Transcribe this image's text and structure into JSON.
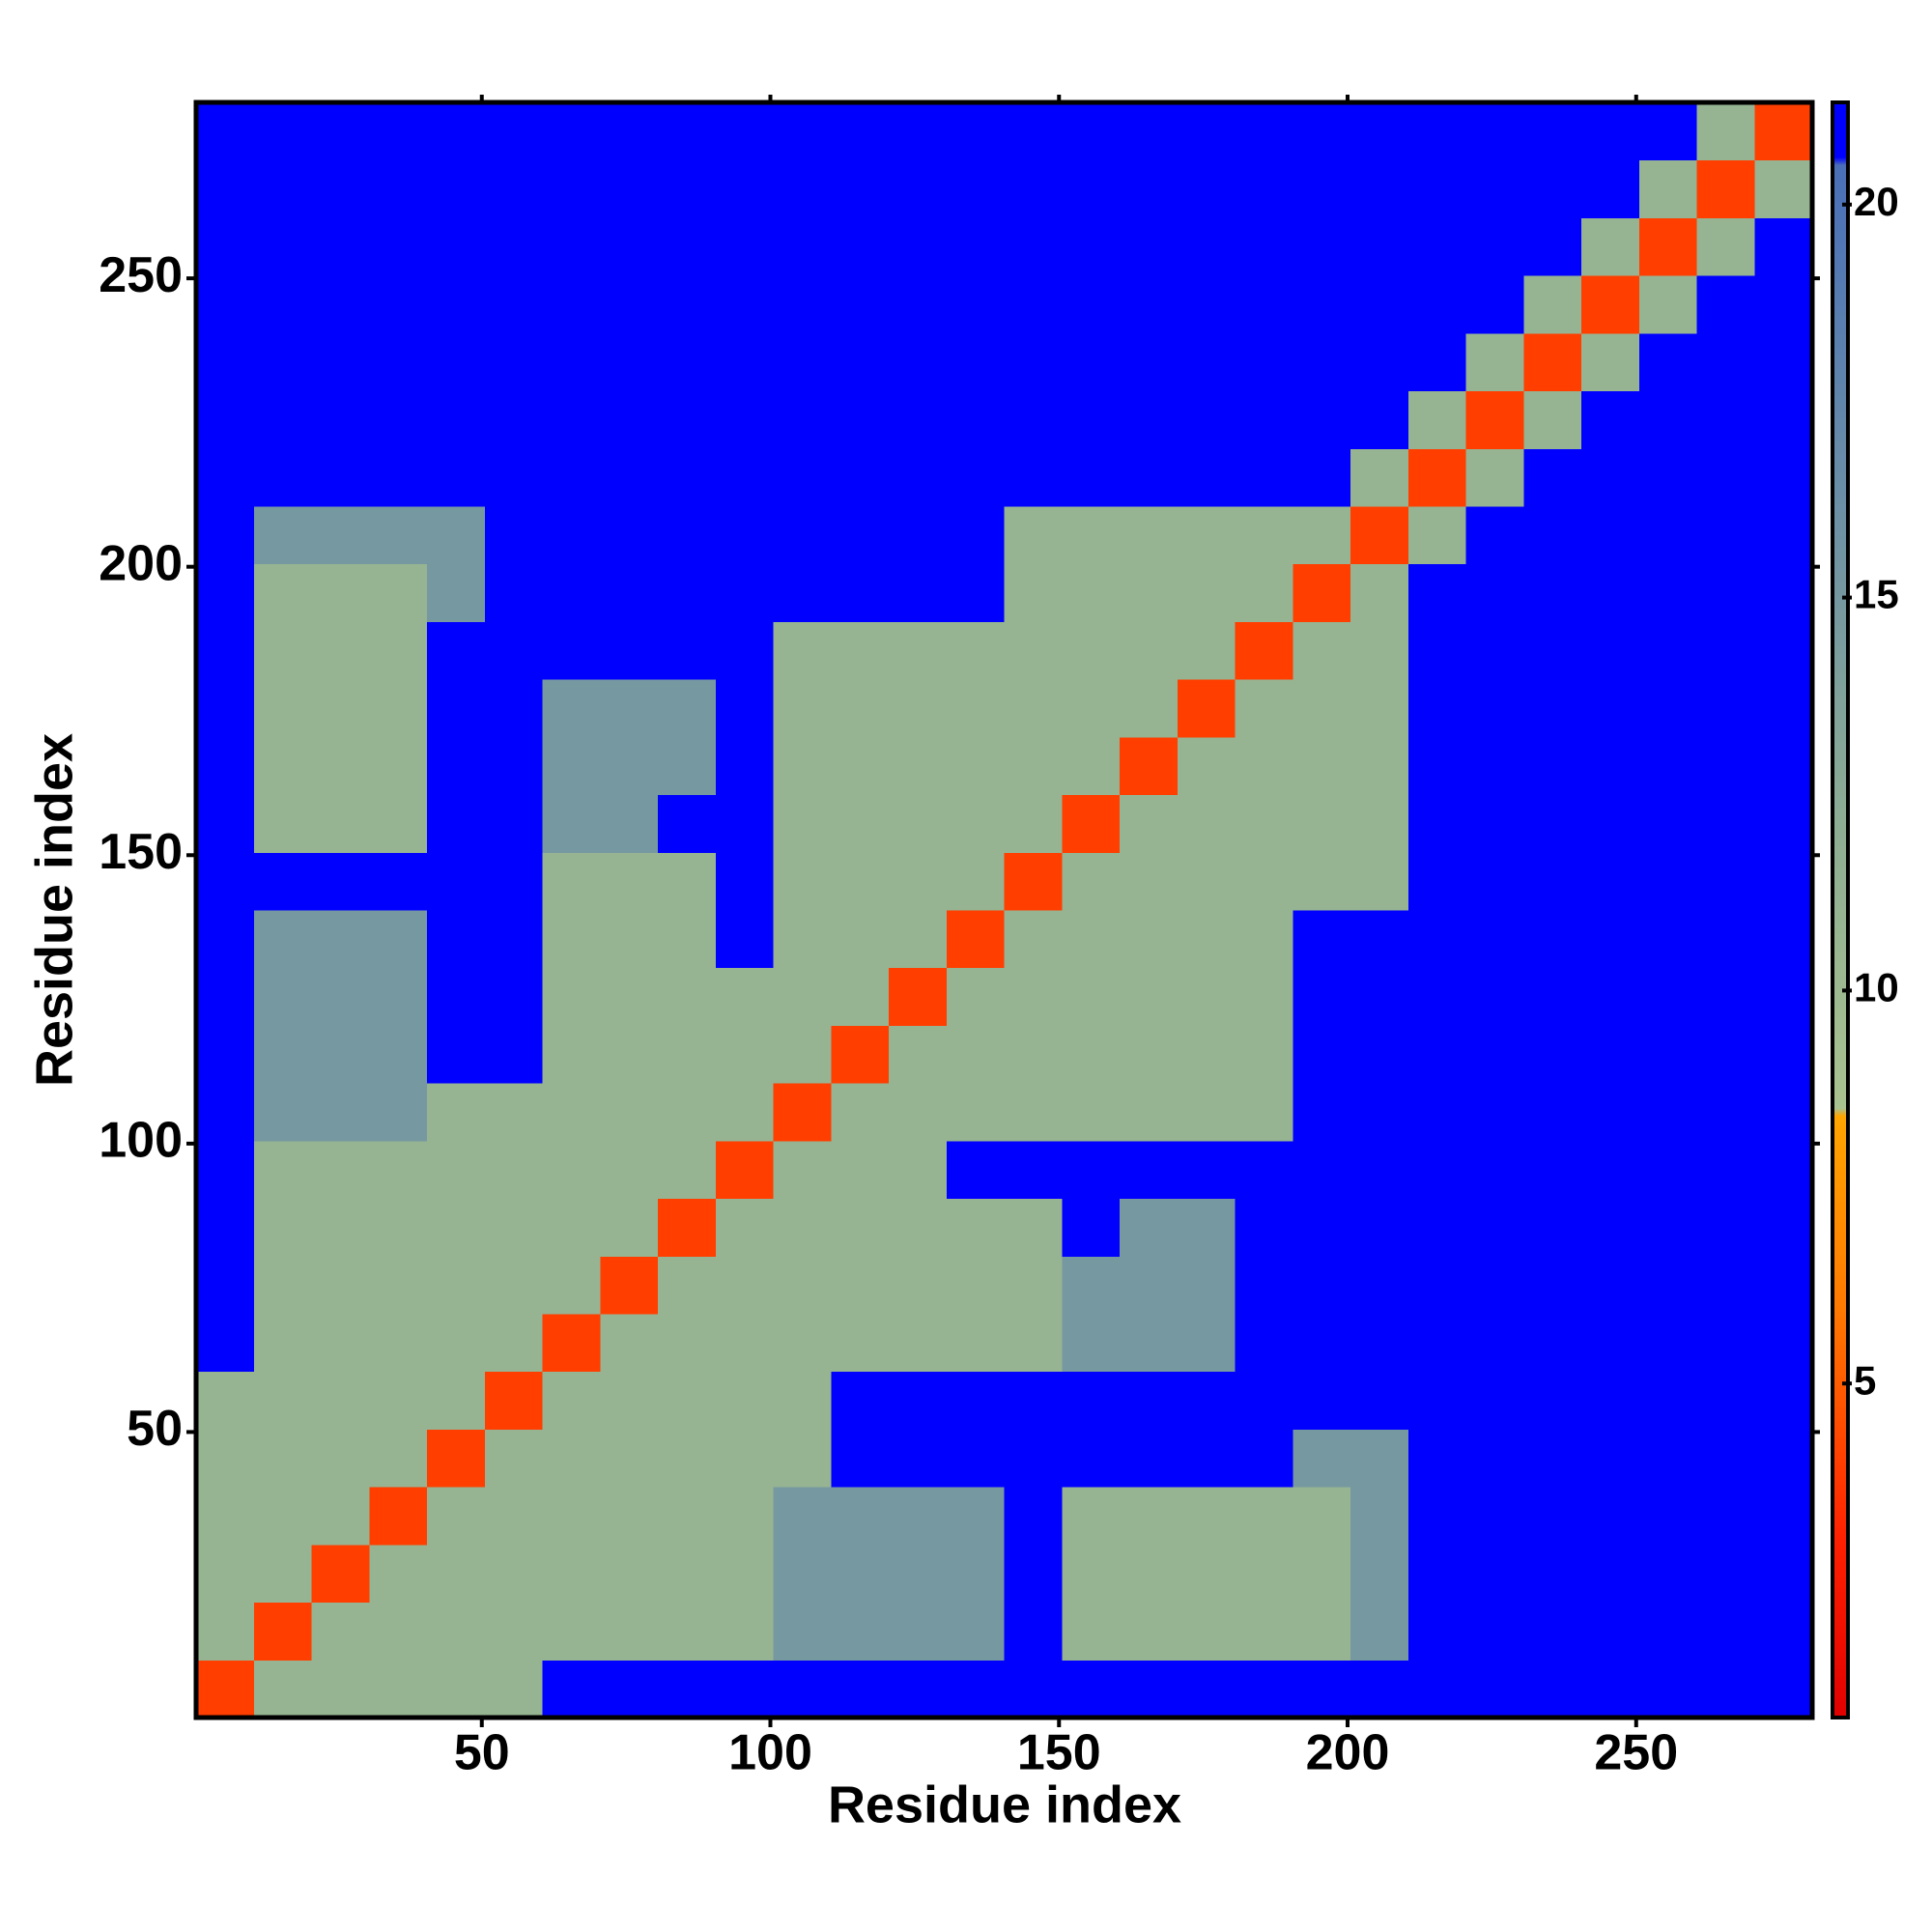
{
  "chart_data": {
    "type": "heatmap",
    "xlabel": "Residue index",
    "ylabel": "Residue index",
    "xlim": [
      0.5,
      280.5
    ],
    "ylim": [
      0.5,
      280.5
    ],
    "xticks": [
      50,
      100,
      150,
      200,
      250
    ],
    "yticks": [
      50,
      100,
      150,
      200,
      250
    ],
    "clim": [
      0.75,
      21.3
    ],
    "cticks": [
      5,
      10,
      15,
      20
    ],
    "colormap": [
      {
        "value": 0.75,
        "color": "#e00000"
      },
      {
        "value": 3,
        "color": "#ff2000"
      },
      {
        "value": 6,
        "color": "#ff7a00"
      },
      {
        "value": 8.4,
        "color": "#ffa500"
      },
      {
        "value": 8.5,
        "color": "#a9c28f"
      },
      {
        "value": 12,
        "color": "#8eae93"
      },
      {
        "value": 18,
        "color": "#5d82ad"
      },
      {
        "value": 20.5,
        "color": "#4a6fb8"
      },
      {
        "value": 20.6,
        "color": "#0000ff"
      },
      {
        "value": 21.3,
        "color": "#0000ff"
      }
    ],
    "xbins": [
      0.5,
      10.5,
      20.5,
      30.5,
      40.5,
      50.5,
      60.5,
      70.5,
      80.5,
      90.5,
      100.5,
      110.5,
      120.5,
      130.5,
      140.5,
      150.5,
      160.5,
      170.5,
      180.5,
      190.5,
      200.5,
      210.5,
      220.5,
      230.5,
      240.5,
      250.5,
      260.5,
      270.5,
      280.5
    ],
    "ybins": [
      0.5,
      10.5,
      20.5,
      30.5,
      40.5,
      50.5,
      60.5,
      70.5,
      80.5,
      90.5,
      100.5,
      110.5,
      120.5,
      130.5,
      140.5,
      150.5,
      160.5,
      170.5,
      180.5,
      190.5,
      200.5,
      210.5,
      220.5,
      230.5,
      240.5,
      250.5,
      260.5,
      270.5,
      280.5
    ],
    "z": [
      [
        4,
        11,
        11,
        11,
        11,
        11,
        21,
        21,
        21,
        21,
        21,
        21,
        21,
        21,
        21,
        21,
        21,
        21,
        21,
        21,
        21,
        21,
        21,
        21,
        21,
        21,
        21,
        21
      ],
      [
        11,
        4,
        11,
        11,
        11,
        11,
        11,
        11,
        11,
        11,
        15,
        15,
        15,
        15,
        21,
        11,
        11,
        11,
        11,
        11,
        15,
        21,
        21,
        21,
        21,
        21,
        21,
        21
      ],
      [
        11,
        11,
        4,
        11,
        11,
        11,
        11,
        11,
        11,
        11,
        15,
        15,
        15,
        15,
        21,
        11,
        11,
        11,
        11,
        11,
        15,
        21,
        21,
        21,
        21,
        21,
        21,
        21
      ],
      [
        11,
        11,
        11,
        4,
        11,
        11,
        11,
        11,
        11,
        11,
        15,
        15,
        15,
        15,
        21,
        11,
        11,
        11,
        11,
        11,
        15,
        21,
        21,
        21,
        21,
        21,
        21,
        21
      ],
      [
        11,
        11,
        11,
        11,
        4,
        11,
        11,
        11,
        11,
        11,
        11,
        21,
        21,
        21,
        21,
        21,
        21,
        21,
        21,
        15,
        15,
        21,
        21,
        21,
        21,
        21,
        21,
        21
      ],
      [
        11,
        11,
        11,
        11,
        11,
        4,
        11,
        11,
        11,
        11,
        11,
        21,
        21,
        21,
        21,
        21,
        21,
        21,
        21,
        21,
        21,
        21,
        21,
        21,
        21,
        21,
        21,
        21
      ],
      [
        21,
        11,
        11,
        11,
        11,
        11,
        4,
        11,
        11,
        11,
        11,
        11,
        11,
        11,
        11,
        15,
        15,
        15,
        21,
        21,
        21,
        21,
        21,
        21,
        21,
        21,
        21,
        21
      ],
      [
        21,
        11,
        11,
        11,
        11,
        11,
        11,
        4,
        11,
        11,
        11,
        11,
        11,
        11,
        11,
        15,
        15,
        15,
        21,
        21,
        21,
        21,
        21,
        21,
        21,
        21,
        21,
        21
      ],
      [
        21,
        11,
        11,
        11,
        11,
        11,
        11,
        11,
        4,
        11,
        11,
        11,
        11,
        11,
        11,
        21,
        15,
        15,
        21,
        21,
        21,
        21,
        21,
        21,
        21,
        21,
        21,
        21
      ],
      [
        21,
        11,
        11,
        11,
        11,
        11,
        11,
        11,
        11,
        4,
        11,
        11,
        11,
        21,
        21,
        21,
        21,
        21,
        21,
        21,
        21,
        21,
        21,
        21,
        21,
        21,
        21,
        21
      ],
      [
        21,
        15,
        15,
        15,
        11,
        11,
        11,
        11,
        11,
        11,
        4,
        11,
        11,
        11,
        11,
        11,
        11,
        11,
        11,
        21,
        21,
        21,
        21,
        21,
        21,
        21,
        21,
        21
      ],
      [
        21,
        15,
        15,
        15,
        21,
        21,
        11,
        11,
        11,
        11,
        11,
        4,
        11,
        11,
        11,
        11,
        11,
        11,
        11,
        21,
        21,
        21,
        21,
        21,
        21,
        21,
        21,
        21
      ],
      [
        21,
        15,
        15,
        15,
        21,
        21,
        11,
        11,
        11,
        11,
        11,
        11,
        4,
        11,
        11,
        11,
        11,
        11,
        11,
        21,
        21,
        21,
        21,
        21,
        21,
        21,
        21,
        21
      ],
      [
        21,
        15,
        15,
        15,
        21,
        21,
        11,
        11,
        11,
        21,
        11,
        11,
        11,
        4,
        11,
        11,
        11,
        11,
        11,
        21,
        21,
        21,
        21,
        21,
        21,
        21,
        21,
        21
      ],
      [
        21,
        21,
        21,
        21,
        21,
        21,
        11,
        11,
        11,
        21,
        11,
        11,
        11,
        11,
        4,
        11,
        11,
        11,
        11,
        11,
        11,
        21,
        21,
        21,
        21,
        21,
        21,
        21
      ],
      [
        21,
        11,
        11,
        11,
        21,
        21,
        15,
        15,
        21,
        21,
        11,
        11,
        11,
        11,
        11,
        4,
        11,
        11,
        11,
        11,
        11,
        21,
        21,
        21,
        21,
        21,
        21,
        21
      ],
      [
        21,
        11,
        11,
        11,
        21,
        21,
        15,
        15,
        15,
        21,
        11,
        11,
        11,
        11,
        11,
        11,
        4,
        11,
        11,
        11,
        11,
        21,
        21,
        21,
        21,
        21,
        21,
        21
      ],
      [
        21,
        11,
        11,
        11,
        21,
        21,
        15,
        15,
        15,
        21,
        11,
        11,
        11,
        11,
        11,
        11,
        11,
        4,
        11,
        11,
        11,
        21,
        21,
        21,
        21,
        21,
        21,
        21
      ],
      [
        21,
        11,
        11,
        11,
        21,
        21,
        21,
        21,
        21,
        21,
        11,
        11,
        11,
        11,
        11,
        11,
        11,
        11,
        4,
        11,
        11,
        21,
        21,
        21,
        21,
        21,
        21,
        21
      ],
      [
        21,
        11,
        11,
        11,
        15,
        21,
        21,
        21,
        21,
        21,
        21,
        21,
        21,
        21,
        11,
        11,
        11,
        11,
        11,
        4,
        11,
        21,
        21,
        21,
        21,
        21,
        21,
        21
      ],
      [
        21,
        15,
        15,
        15,
        15,
        21,
        21,
        21,
        21,
        21,
        21,
        21,
        21,
        21,
        11,
        11,
        11,
        11,
        11,
        11,
        4,
        11,
        21,
        21,
        21,
        21,
        21,
        21
      ],
      [
        21,
        21,
        21,
        21,
        21,
        21,
        21,
        21,
        21,
        21,
        21,
        21,
        21,
        21,
        21,
        21,
        21,
        21,
        21,
        21,
        11,
        4,
        11,
        21,
        21,
        21,
        21,
        21
      ],
      [
        21,
        21,
        21,
        21,
        21,
        21,
        21,
        21,
        21,
        21,
        21,
        21,
        21,
        21,
        21,
        21,
        21,
        21,
        21,
        21,
        21,
        11,
        4,
        11,
        21,
        21,
        21,
        21
      ],
      [
        21,
        21,
        21,
        21,
        21,
        21,
        21,
        21,
        21,
        21,
        21,
        21,
        21,
        21,
        21,
        21,
        21,
        21,
        21,
        21,
        21,
        21,
        11,
        4,
        11,
        21,
        21,
        21
      ],
      [
        21,
        21,
        21,
        21,
        21,
        21,
        21,
        21,
        21,
        21,
        21,
        21,
        21,
        21,
        21,
        21,
        21,
        21,
        21,
        21,
        21,
        21,
        21,
        11,
        4,
        11,
        21,
        21
      ],
      [
        21,
        21,
        21,
        21,
        21,
        21,
        21,
        21,
        21,
        21,
        21,
        21,
        21,
        21,
        21,
        21,
        21,
        21,
        21,
        21,
        21,
        21,
        21,
        21,
        11,
        4,
        11,
        21
      ],
      [
        21,
        21,
        21,
        21,
        21,
        21,
        21,
        21,
        21,
        21,
        21,
        21,
        21,
        21,
        21,
        21,
        21,
        21,
        21,
        21,
        21,
        21,
        21,
        21,
        21,
        11,
        4,
        11
      ],
      [
        21,
        21,
        21,
        21,
        21,
        21,
        21,
        21,
        21,
        21,
        21,
        21,
        21,
        21,
        21,
        21,
        21,
        21,
        21,
        21,
        21,
        21,
        21,
        21,
        21,
        21,
        11,
        4
      ]
    ]
  }
}
